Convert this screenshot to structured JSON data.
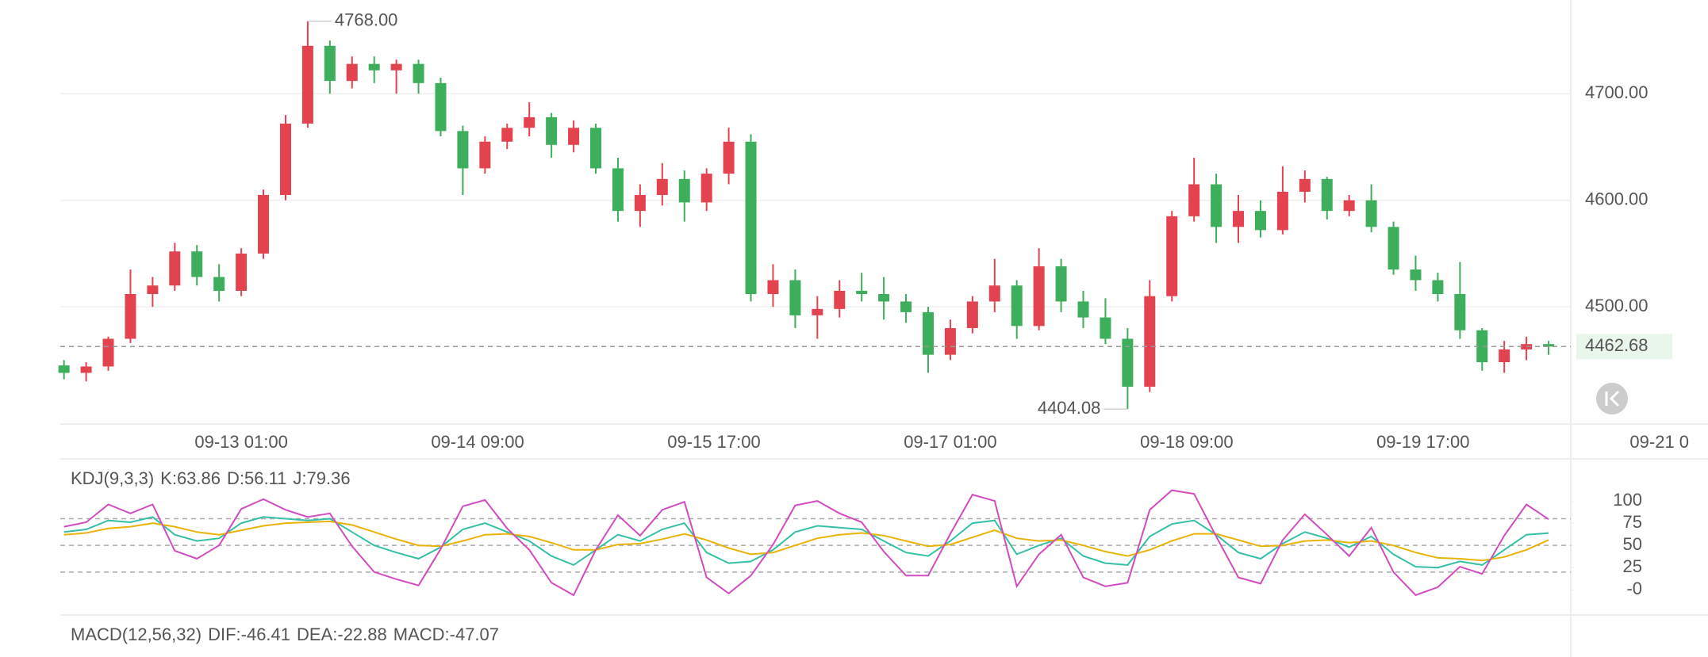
{
  "chart_data": [
    {
      "type": "candlestick",
      "x": [
        0,
        3,
        6,
        9,
        12,
        15,
        18,
        21,
        24,
        27,
        30,
        33,
        36,
        39,
        42,
        45,
        48,
        51,
        54,
        57,
        60,
        63,
        66,
        69,
        72,
        75,
        78,
        81,
        84,
        87,
        90,
        93,
        96,
        99,
        102,
        105,
        108,
        111,
        114,
        117,
        120,
        123,
        126,
        129,
        132,
        135,
        138,
        141,
        144,
        147,
        150,
        153,
        156,
        159,
        162,
        165,
        168,
        171,
        174,
        177,
        180,
        183,
        186,
        189,
        192,
        195,
        198,
        201
      ],
      "ohlc": [
        [
          4445,
          4450,
          4432,
          4438
        ],
        [
          4438,
          4448,
          4430,
          4444
        ],
        [
          4444,
          4472,
          4440,
          4470
        ],
        [
          4470,
          4535,
          4466,
          4512
        ],
        [
          4512,
          4528,
          4500,
          4520
        ],
        [
          4520,
          4560,
          4515,
          4552
        ],
        [
          4552,
          4558,
          4520,
          4528
        ],
        [
          4528,
          4540,
          4505,
          4515
        ],
        [
          4515,
          4555,
          4510,
          4550
        ],
        [
          4550,
          4610,
          4545,
          4605
        ],
        [
          4605,
          4680,
          4600,
          4672
        ],
        [
          4672,
          4768,
          4668,
          4745
        ],
        [
          4745,
          4750,
          4700,
          4712
        ],
        [
          4712,
          4735,
          4705,
          4728
        ],
        [
          4728,
          4735,
          4710,
          4722
        ],
        [
          4722,
          4732,
          4700,
          4728
        ],
        [
          4728,
          4732,
          4700,
          4710
        ],
        [
          4710,
          4715,
          4660,
          4665
        ],
        [
          4665,
          4670,
          4605,
          4630
        ],
        [
          4630,
          4660,
          4625,
          4655
        ],
        [
          4655,
          4672,
          4648,
          4668
        ],
        [
          4668,
          4692,
          4660,
          4678
        ],
        [
          4678,
          4682,
          4640,
          4652
        ],
        [
          4652,
          4675,
          4645,
          4668
        ],
        [
          4668,
          4672,
          4625,
          4630
        ],
        [
          4630,
          4640,
          4580,
          4590
        ],
        [
          4590,
          4615,
          4575,
          4605
        ],
        [
          4605,
          4635,
          4595,
          4620
        ],
        [
          4620,
          4628,
          4580,
          4598
        ],
        [
          4598,
          4630,
          4590,
          4625
        ],
        [
          4625,
          4668,
          4615,
          4655
        ],
        [
          4655,
          4662,
          4505,
          4512
        ],
        [
          4512,
          4540,
          4500,
          4525
        ],
        [
          4525,
          4535,
          4480,
          4492
        ],
        [
          4492,
          4510,
          4470,
          4498
        ],
        [
          4498,
          4525,
          4490,
          4515
        ],
        [
          4515,
          4532,
          4505,
          4512
        ],
        [
          4512,
          4528,
          4488,
          4505
        ],
        [
          4505,
          4512,
          4485,
          4495
        ],
        [
          4495,
          4500,
          4438,
          4455
        ],
        [
          4455,
          4488,
          4450,
          4480
        ],
        [
          4480,
          4510,
          4475,
          4505
        ],
        [
          4505,
          4545,
          4495,
          4520
        ],
        [
          4520,
          4525,
          4470,
          4482
        ],
        [
          4482,
          4555,
          4478,
          4538
        ],
        [
          4538,
          4545,
          4495,
          4505
        ],
        [
          4505,
          4515,
          4480,
          4490
        ],
        [
          4490,
          4508,
          4465,
          4470
        ],
        [
          4470,
          4480,
          4404.08,
          4425
        ],
        [
          4425,
          4525,
          4420,
          4510
        ],
        [
          4510,
          4590,
          4505,
          4585
        ],
        [
          4585,
          4640,
          4580,
          4615
        ],
        [
          4615,
          4625,
          4560,
          4575
        ],
        [
          4575,
          4605,
          4560,
          4590
        ],
        [
          4590,
          4600,
          4565,
          4572
        ],
        [
          4572,
          4632,
          4568,
          4608
        ],
        [
          4608,
          4628,
          4598,
          4620
        ],
        [
          4620,
          4622,
          4582,
          4590
        ],
        [
          4590,
          4605,
          4585,
          4600
        ],
        [
          4600,
          4615,
          4570,
          4575
        ],
        [
          4575,
          4580,
          4530,
          4535
        ],
        [
          4535,
          4548,
          4515,
          4525
        ],
        [
          4525,
          4532,
          4505,
          4512
        ],
        [
          4512,
          4542,
          4470,
          4478
        ],
        [
          4478,
          4480,
          4440,
          4448
        ],
        [
          4448,
          4468,
          4438,
          4460
        ],
        [
          4460,
          4472,
          4450,
          4465
        ],
        [
          4465,
          4468,
          4455,
          4462.68
        ]
      ],
      "up_color": "#e2434f",
      "down_color": "#3dae5b",
      "xlim": [
        -0.5,
        204
      ],
      "ylim": [
        4390,
        4788
      ],
      "xticks": [
        {
          "value": 24,
          "label": "09-13 01:00"
        },
        {
          "value": 56,
          "label": "09-14 09:00"
        },
        {
          "value": 88,
          "label": "09-15 17:00"
        },
        {
          "value": 120,
          "label": "09-17 01:00"
        },
        {
          "value": 152,
          "label": "09-18 09:00"
        },
        {
          "value": 184,
          "label": "09-19 17:00"
        },
        {
          "value": 216,
          "label": "09-21 0"
        }
      ],
      "yticks": [
        {
          "value": 4700,
          "label": "4700.00"
        },
        {
          "value": 4600,
          "label": "4600.00"
        },
        {
          "value": 4500,
          "label": "4500.00"
        }
      ],
      "grid": true,
      "annotations": [
        {
          "value": 4768,
          "label": "4768.00"
        },
        {
          "value": 4404.08,
          "label": "4404.08"
        }
      ],
      "last_price": 4462.68,
      "last_price_color": "#3dae5b"
    },
    {
      "type": "line",
      "title": "KDJ(9,3,3)",
      "ylim": [
        -14,
        125
      ],
      "yticks": [
        100,
        75,
        50,
        25,
        {
          "value": 0,
          "label": "-0"
        }
      ],
      "levels": [
        80,
        50,
        20
      ],
      "series": [
        {
          "name": "K:63.86",
          "color": "#35c0a6",
          "values": [
            65,
            68,
            78,
            76,
            82,
            62,
            55,
            58,
            75,
            82,
            80,
            78,
            80,
            65,
            50,
            42,
            35,
            48,
            68,
            75,
            65,
            55,
            38,
            28,
            45,
            62,
            55,
            68,
            75,
            42,
            30,
            32,
            45,
            65,
            72,
            70,
            68,
            55,
            42,
            38,
            55,
            75,
            78,
            40,
            50,
            58,
            38,
            30,
            28,
            60,
            74,
            78,
            62,
            42,
            35,
            52,
            65,
            58,
            48,
            60,
            40,
            26,
            25,
            32,
            28,
            45,
            62,
            63.86
          ]
        },
        {
          "name": "D:56.11",
          "color": "#eab308",
          "values": [
            62,
            64,
            69,
            71,
            75,
            71,
            65,
            62,
            67,
            72,
            75,
            76,
            77,
            73,
            65,
            57,
            50,
            49,
            55,
            62,
            63,
            60,
            53,
            45,
            45,
            51,
            52,
            57,
            63,
            56,
            47,
            40,
            42,
            50,
            58,
            62,
            64,
            61,
            55,
            49,
            51,
            59,
            67,
            58,
            55,
            56,
            50,
            43,
            38,
            45,
            55,
            63,
            63,
            56,
            49,
            50,
            55,
            56,
            53,
            55,
            50,
            42,
            36,
            35,
            33,
            37,
            45,
            56.11
          ]
        },
        {
          "name": "J:79.36",
          "color": "#d24bc0",
          "values": [
            71,
            76,
            96,
            86,
            96,
            44,
            35,
            50,
            91,
            102,
            90,
            82,
            86,
            49,
            20,
            12,
            5,
            46,
            94,
            101,
            69,
            45,
            8,
            -6,
            45,
            84,
            61,
            90,
            99,
            14,
            -4,
            16,
            51,
            95,
            100,
            86,
            76,
            43,
            16,
            16,
            63,
            107,
            100,
            4,
            40,
            62,
            14,
            4,
            8,
            90,
            112,
            108,
            60,
            14,
            7,
            56,
            85,
            62,
            38,
            70,
            20,
            -6,
            3,
            26,
            18,
            61,
            96,
            79.36
          ]
        }
      ]
    },
    {
      "type": "legend",
      "title": "MACD(12,56,32)",
      "series": [
        {
          "name": "DIF:-46.41",
          "color": "#35c0a6"
        },
        {
          "name": "DEA:-22.88",
          "color": "#eab308"
        },
        {
          "name": "MACD:-47.07",
          "color": "#d24bc0"
        }
      ]
    }
  ]
}
